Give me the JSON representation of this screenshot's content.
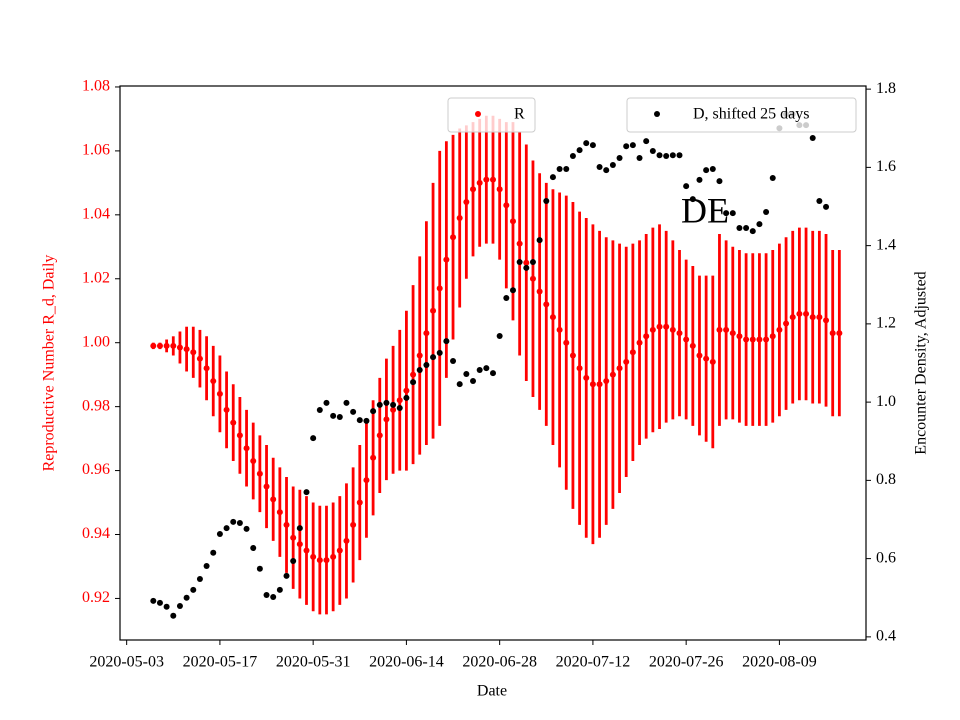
{
  "chart_data": {
    "type": "errorbar-scatter",
    "annotation": "DE",
    "x_label": "Date",
    "y_label": "Reproductive Number R_d, Daily",
    "y2_label": "Encounter Density, Adjusted",
    "xlim": [
      "2020-05-02",
      "2020-08-22"
    ],
    "xticks": [
      "2020-05-03",
      "2020-05-17",
      "2020-05-31",
      "2020-06-14",
      "2020-06-28",
      "2020-07-12",
      "2020-07-26",
      "2020-08-09"
    ],
    "ylim": [
      0.907,
      1.0803
    ],
    "yticks": [
      0.92,
      0.94,
      0.96,
      0.98,
      {
        "value": 1,
        "label": "1.00"
      },
      1.02,
      1.04,
      1.06,
      1.08
    ],
    "y2lim": [
      0.392,
      1.808
    ],
    "y2ticks": [
      0.4,
      0.6,
      0.8,
      {
        "value": 1,
        "label": "1.0"
      },
      1.2,
      1.4,
      1.6,
      1.8
    ],
    "x": [
      "2020-05-07",
      "2020-05-08",
      "2020-05-09",
      "2020-05-10",
      "2020-05-11",
      "2020-05-12",
      "2020-05-13",
      "2020-05-14",
      "2020-05-15",
      "2020-05-16",
      "2020-05-17",
      "2020-05-18",
      "2020-05-19",
      "2020-05-20",
      "2020-05-21",
      "2020-05-22",
      "2020-05-23",
      "2020-05-24",
      "2020-05-25",
      "2020-05-26",
      "2020-05-27",
      "2020-05-28",
      "2020-05-29",
      "2020-05-30",
      "2020-05-31",
      "2020-06-01",
      "2020-06-02",
      "2020-06-03",
      "2020-06-04",
      "2020-06-05",
      "2020-06-06",
      "2020-06-07",
      "2020-06-08",
      "2020-06-09",
      "2020-06-10",
      "2020-06-11",
      "2020-06-12",
      "2020-06-13",
      "2020-06-14",
      "2020-06-15",
      "2020-06-16",
      "2020-06-17",
      "2020-06-18",
      "2020-06-19",
      "2020-06-20",
      "2020-06-21",
      "2020-06-22",
      "2020-06-23",
      "2020-06-24",
      "2020-06-25",
      "2020-06-26",
      "2020-06-27",
      "2020-06-28",
      "2020-06-29",
      "2020-06-30",
      "2020-07-01",
      "2020-07-02",
      "2020-07-03",
      "2020-07-04",
      "2020-07-05",
      "2020-07-06",
      "2020-07-07",
      "2020-07-08",
      "2020-07-09",
      "2020-07-10",
      "2020-07-11",
      "2020-07-12",
      "2020-07-13",
      "2020-07-14",
      "2020-07-15",
      "2020-07-16",
      "2020-07-17",
      "2020-07-18",
      "2020-07-19",
      "2020-07-20",
      "2020-07-21",
      "2020-07-22",
      "2020-07-23",
      "2020-07-24",
      "2020-07-25",
      "2020-07-26",
      "2020-07-27",
      "2020-07-28",
      "2020-07-29",
      "2020-07-30",
      "2020-07-31",
      "2020-08-01",
      "2020-08-02",
      "2020-08-03",
      "2020-08-04",
      "2020-08-05",
      "2020-08-06",
      "2020-08-07",
      "2020-08-08",
      "2020-08-09",
      "2020-08-10",
      "2020-08-11",
      "2020-08-12",
      "2020-08-13",
      "2020-08-14",
      "2020-08-15",
      "2020-08-16",
      "2020-08-17",
      "2020-08-18"
    ],
    "series": [
      {
        "name": "R",
        "color": "#ff0000",
        "axis": "y",
        "values": [
          0.999,
          0.999,
          0.999,
          0.999,
          0.9985,
          0.998,
          0.997,
          0.995,
          0.992,
          0.988,
          0.984,
          0.979,
          0.975,
          0.971,
          0.967,
          0.963,
          0.959,
          0.955,
          0.951,
          0.947,
          0.943,
          0.939,
          0.937,
          0.935,
          0.933,
          0.932,
          0.932,
          0.933,
          0.935,
          0.938,
          0.943,
          0.95,
          0.957,
          0.964,
          0.971,
          0.976,
          0.979,
          0.982,
          0.985,
          0.99,
          0.996,
          1.003,
          1.01,
          1.017,
          1.026,
          1.033,
          1.039,
          1.044,
          1.048,
          1.05,
          1.051,
          1.051,
          1.048,
          1.043,
          1.038,
          1.031,
          1.025,
          1.02,
          1.016,
          1.012,
          1.008,
          1.004,
          1.0,
          0.996,
          0.992,
          0.989,
          0.987,
          0.987,
          0.988,
          0.99,
          0.992,
          0.994,
          0.997,
          1.0,
          1.002,
          1.004,
          1.005,
          1.005,
          1.004,
          1.003,
          1.001,
          0.999,
          0.996,
          0.995,
          0.994,
          1.004,
          1.004,
          1.003,
          1.002,
          1.001,
          1.001,
          1.001,
          1.001,
          1.002,
          1.004,
          1.006,
          1.008,
          1.009,
          1.009,
          1.008,
          1.008,
          1.007,
          1.003,
          1.003
        ],
        "errors": [
          0.001,
          0.001,
          0.002,
          0.003,
          0.005,
          0.007,
          0.008,
          0.009,
          0.01,
          0.011,
          0.012,
          0.012,
          0.012,
          0.012,
          0.012,
          0.012,
          0.012,
          0.013,
          0.013,
          0.014,
          0.015,
          0.016,
          0.017,
          0.017,
          0.017,
          0.017,
          0.017,
          0.017,
          0.017,
          0.018,
          0.018,
          0.018,
          0.018,
          0.018,
          0.018,
          0.019,
          0.02,
          0.022,
          0.025,
          0.028,
          0.031,
          0.035,
          0.04,
          0.043,
          0.037,
          0.032,
          0.028,
          0.024,
          0.021,
          0.02,
          0.02,
          0.02,
          0.022,
          0.026,
          0.031,
          0.035,
          0.037,
          0.037,
          0.037,
          0.038,
          0.04,
          0.043,
          0.046,
          0.048,
          0.049,
          0.05,
          0.05,
          0.048,
          0.045,
          0.042,
          0.039,
          0.036,
          0.034,
          0.032,
          0.032,
          0.032,
          0.032,
          0.03,
          0.028,
          0.026,
          0.025,
          0.025,
          0.025,
          0.026,
          0.027,
          0.03,
          0.028,
          0.027,
          0.027,
          0.027,
          0.027,
          0.027,
          0.027,
          0.027,
          0.027,
          0.027,
          0.027,
          0.027,
          0.027,
          0.027,
          0.027,
          0.027,
          0.026,
          0.026
        ]
      },
      {
        "name": "D, shifted 25 days",
        "color": "#000000",
        "axis": "y2",
        "values": [
          0.492,
          0.487,
          0.477,
          0.454,
          0.479,
          0.5,
          0.52,
          0.548,
          0.581,
          0.615,
          0.663,
          0.678,
          0.694,
          0.691,
          0.676,
          0.627,
          0.574,
          0.507,
          0.502,
          0.52,
          0.556,
          0.594,
          0.678,
          0.77,
          0.908,
          0.98,
          0.998,
          0.965,
          0.962,
          0.998,
          0.975,
          0.954,
          0.952,
          0.977,
          0.993,
          0.998,
          0.993,
          0.985,
          1.011,
          1.051,
          1.082,
          1.095,
          1.115,
          1.126,
          1.156,
          1.105,
          1.046,
          1.072,
          1.054,
          1.082,
          1.087,
          1.074,
          1.169,
          1.266,
          1.286,
          1.358,
          1.343,
          1.358,
          1.414,
          1.514,
          1.575,
          1.596,
          1.596,
          1.629,
          1.644,
          1.662,
          1.657,
          1.601,
          1.593,
          1.606,
          1.624,
          1.654,
          1.657,
          1.624,
          1.667,
          1.642,
          1.631,
          1.629,
          1.631,
          1.631,
          1.552,
          1.519,
          1.568,
          1.593,
          1.596,
          1.565,
          1.483,
          1.483,
          1.445,
          1.445,
          1.437,
          1.455,
          1.486,
          1.573,
          1.7,
          1.736,
          1.736,
          1.708,
          1.708,
          1.675,
          1.514,
          1.499,
          null,
          null
        ]
      }
    ]
  }
}
